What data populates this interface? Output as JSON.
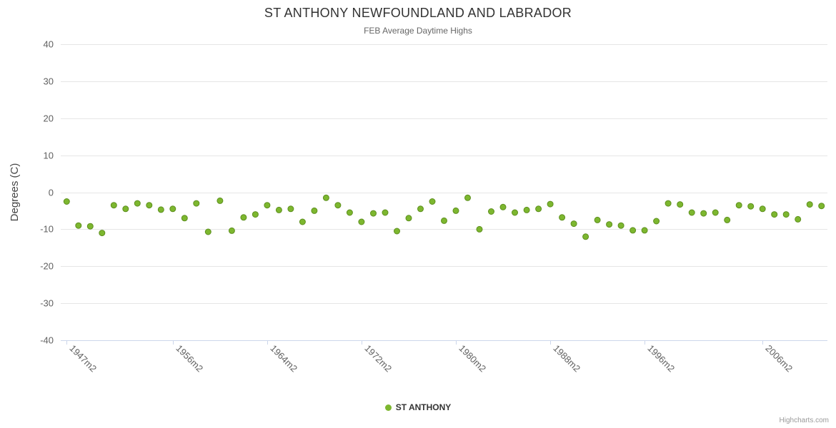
{
  "header": {
    "title": "ST ANTHONY NEWFOUNDLAND AND LABRADOR",
    "subtitle": "FEB Average Daytime Highs"
  },
  "legend": {
    "items": [
      {
        "label": "ST ANTHONY",
        "color": "#7db72f"
      }
    ]
  },
  "credits": {
    "label": "Highcharts.com"
  },
  "chart_data": {
    "type": "scatter",
    "title": "ST ANTHONY NEWFOUNDLAND AND LABRADOR",
    "subtitle": "FEB Average Daytime Highs",
    "xlabel": "",
    "ylabel": "Degrees (C)",
    "ylim": [
      -40,
      40
    ],
    "ytick_step": 10,
    "ytick_labels": [
      "40",
      "30",
      "20",
      "10",
      "0",
      "-10",
      "-20",
      "-30",
      "-40"
    ],
    "grid": true,
    "legend_position": "bottom",
    "marker_color": "#7db72f",
    "marker_stroke": "#5d8f1e",
    "grid_color": "#e6e6e6",
    "axis_line_color": "#ccd6eb",
    "axis_label_color": "#606060",
    "categories": [
      "1947m2",
      "1948m2",
      "1949m2",
      "1950m2",
      "1951m2",
      "1952m2",
      "1953m2",
      "1954m2",
      "1955m2",
      "1956m2",
      "1957m2",
      "1958m2",
      "1959m2",
      "1960m2",
      "1961m2",
      "1962m2",
      "1963m2",
      "1964m2",
      "1965m2",
      "1966m2",
      "1967m2",
      "1968m2",
      "1969m2",
      "1970m2",
      "1971m2",
      "1972m2",
      "1973m2",
      "1974m2",
      "1975m2",
      "1976m2",
      "1977m2",
      "1978m2",
      "1979m2",
      "1980m2",
      "1981m2",
      "1982m2",
      "1983m2",
      "1984m2",
      "1985m2",
      "1986m2",
      "1987m2",
      "1988m2",
      "1989m2",
      "1990m2",
      "1991m2",
      "1992m2",
      "1993m2",
      "1994m2",
      "1995m2",
      "1996m2",
      "1997m2",
      "1998m2",
      "1999m2",
      "2000m2",
      "2001m2",
      "2002m2",
      "2003m2",
      "2004m2",
      "2005m2",
      "2006m2",
      "2007m2",
      "2008m2",
      "2009m2",
      "2010m2",
      "2011m2"
    ],
    "series": [
      {
        "name": "ST ANTHONY",
        "values": [
          -2.5,
          -9.0,
          -9.2,
          -11.0,
          -3.5,
          -4.5,
          -3.0,
          -3.5,
          -4.7,
          -4.5,
          -7.0,
          -3.0,
          -10.7,
          -2.3,
          -10.4,
          -6.8,
          -6.0,
          -3.5,
          -4.8,
          -4.5,
          -8.0,
          -5.0,
          -1.5,
          -3.5,
          -5.5,
          -8.0,
          -5.7,
          -5.5,
          -10.5,
          -7.0,
          -4.5,
          -2.5,
          -7.7,
          -5.0,
          -1.5,
          -10.0,
          -5.2,
          -4.0,
          -5.5,
          -4.8,
          -4.5,
          -3.2,
          -6.8,
          -8.5,
          -12.0,
          -7.5,
          -8.7,
          -9.0,
          -10.3,
          -10.3,
          -7.8,
          -3.0,
          -3.3,
          -5.5,
          -5.7,
          -5.5,
          -7.5,
          -3.5,
          -3.8,
          -4.5,
          -6.0,
          -6.0,
          -7.3,
          -3.3,
          -3.7
        ]
      }
    ],
    "xtick_indices": [
      0,
      9,
      17,
      25,
      33,
      41,
      49,
      59
    ],
    "xtick_labels": [
      "1947m2",
      "1956m2",
      "1964m2",
      "1972m2",
      "1980m2",
      "1988m2",
      "1996m2",
      "2006m2"
    ]
  }
}
